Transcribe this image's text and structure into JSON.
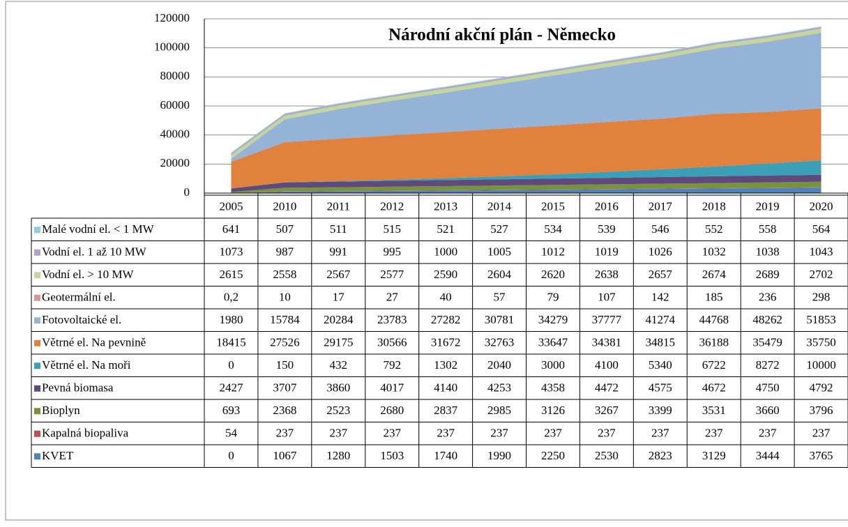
{
  "chart_data": {
    "type": "stacked_area",
    "title": "Národní akční plán - Německo",
    "categories": [
      "2005",
      "2010",
      "2011",
      "2012",
      "2013",
      "2014",
      "2015",
      "2016",
      "2017",
      "2018",
      "2019",
      "2020"
    ],
    "ylim": [
      0,
      120000
    ],
    "yticks": [
      0,
      20000,
      40000,
      60000,
      80000,
      100000,
      120000
    ],
    "grid": true,
    "series": [
      {
        "name": "Malé vodní el. < 1 MW",
        "color": "#93cddd",
        "values": [
          641,
          507,
          511,
          515,
          521,
          527,
          534,
          539,
          546,
          552,
          558,
          564
        ]
      },
      {
        "name": "Vodní el. 1 až 10 MW",
        "color": "#b3a2c7",
        "values": [
          1073,
          987,
          991,
          995,
          1000,
          1005,
          1012,
          1019,
          1026,
          1032,
          1038,
          1043
        ]
      },
      {
        "name": "Vodní el. > 10 MW",
        "color": "#c3d69b",
        "values": [
          2615,
          2558,
          2567,
          2577,
          2590,
          2604,
          2620,
          2638,
          2657,
          2674,
          2689,
          2702
        ]
      },
      {
        "name": "Geotermální el.",
        "color": "#d99694",
        "values": [
          0.2,
          10,
          17,
          27,
          40,
          57,
          79,
          107,
          142,
          185,
          236,
          298
        ],
        "value_labels": [
          "0,2",
          "10",
          "17",
          "27",
          "40",
          "57",
          "79",
          "107",
          "142",
          "185",
          "236",
          "298"
        ]
      },
      {
        "name": "Fotovoltaické el.",
        "color": "#95b3d7",
        "values": [
          1980,
          15784,
          20284,
          23783,
          27282,
          30781,
          34279,
          37777,
          41274,
          44768,
          48262,
          51853
        ]
      },
      {
        "name": "Větrné el. Na pevnině",
        "color": "#e0823d",
        "values": [
          18415,
          27526,
          29175,
          30566,
          31672,
          32763,
          33647,
          34381,
          34815,
          36188,
          35479,
          35750
        ]
      },
      {
        "name": "Větrné el. Na moři",
        "color": "#3b9fb5",
        "values": [
          0,
          150,
          432,
          792,
          1302,
          2040,
          3000,
          4100,
          5340,
          6722,
          8272,
          10000
        ]
      },
      {
        "name": "Pevná biomasa",
        "color": "#604a7b",
        "values": [
          2427,
          3707,
          3860,
          4017,
          4140,
          4253,
          4358,
          4472,
          4575,
          4672,
          4750,
          4792
        ]
      },
      {
        "name": "Bioplyn",
        "color": "#77933c",
        "values": [
          693,
          2368,
          2523,
          2680,
          2837,
          2985,
          3126,
          3267,
          3399,
          3531,
          3660,
          3796
        ]
      },
      {
        "name": "Kapalná biopaliva",
        "color": "#c0504d",
        "values": [
          54,
          237,
          237,
          237,
          237,
          237,
          237,
          237,
          237,
          237,
          237,
          237
        ]
      },
      {
        "name": "KVET",
        "color": "#4f81bd",
        "values": [
          0,
          1067,
          1280,
          1503,
          1740,
          1990,
          2250,
          2530,
          2823,
          3129,
          3444,
          3765
        ]
      }
    ]
  }
}
